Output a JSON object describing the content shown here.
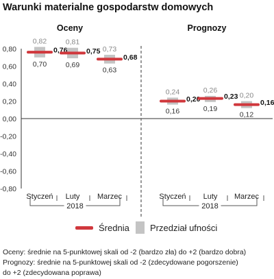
{
  "title": "Warunki materialne gospodarstw domowych",
  "chart_data": {
    "type": "interval",
    "y_axis": {
      "ylim": [
        -0.8,
        0.8
      ],
      "ticks": [
        "0,80",
        "0,60",
        "0,40",
        "0,20",
        "0,00",
        "-0,20",
        "-0,40",
        "-0,60",
        "-0,80"
      ],
      "tick_values": [
        0.8,
        0.6,
        0.4,
        0.2,
        0.0,
        -0.2,
        -0.4,
        -0.6,
        -0.8
      ]
    },
    "grid": false,
    "panels": [
      {
        "label": "Oceny",
        "year": "2018",
        "points": [
          {
            "category": "Styczeń",
            "mean": 0.76,
            "low": 0.7,
            "high": 0.82,
            "mean_label": "0,76",
            "low_label": "0,70",
            "high_label": "0,82"
          },
          {
            "category": "Luty",
            "mean": 0.75,
            "low": 0.69,
            "high": 0.81,
            "mean_label": "0,75",
            "low_label": "0,69",
            "high_label": "0,81"
          },
          {
            "category": "Marzec",
            "mean": 0.68,
            "low": 0.63,
            "high": 0.73,
            "mean_label": "0,68",
            "low_label": "0,63",
            "high_label": "0,73"
          }
        ]
      },
      {
        "label": "Prognozy",
        "year": "2018",
        "points": [
          {
            "category": "Styczeń",
            "mean": 0.2,
            "low": 0.16,
            "high": 0.24,
            "mean_label": "0,20",
            "low_label": "0,16",
            "high_label": "0,24"
          },
          {
            "category": "Luty",
            "mean": 0.23,
            "low": 0.19,
            "high": 0.26,
            "mean_label": "0,23",
            "low_label": "0,19",
            "high_label": "0,26"
          },
          {
            "category": "Marzec",
            "mean": 0.16,
            "low": 0.12,
            "high": 0.2,
            "mean_label": "0,16",
            "low_label": "0,12",
            "high_label": "0,20"
          }
        ]
      }
    ],
    "legend": {
      "position": "bottom",
      "entries": [
        {
          "name": "Średnia",
          "color": "#d0383d"
        },
        {
          "name": "Przedział ufności",
          "color": "#c4c4c4"
        }
      ]
    }
  },
  "notes": [
    "Oceny: średnie na 5-punktowej skali od -2 (bardzo zła) do +2 (bardzo dobra)",
    "Prognozy: średnie na 5-punktowej skali od -2 (zdecydowane pogorszenie)",
    "do +2 (zdecydowana poprawa)"
  ]
}
